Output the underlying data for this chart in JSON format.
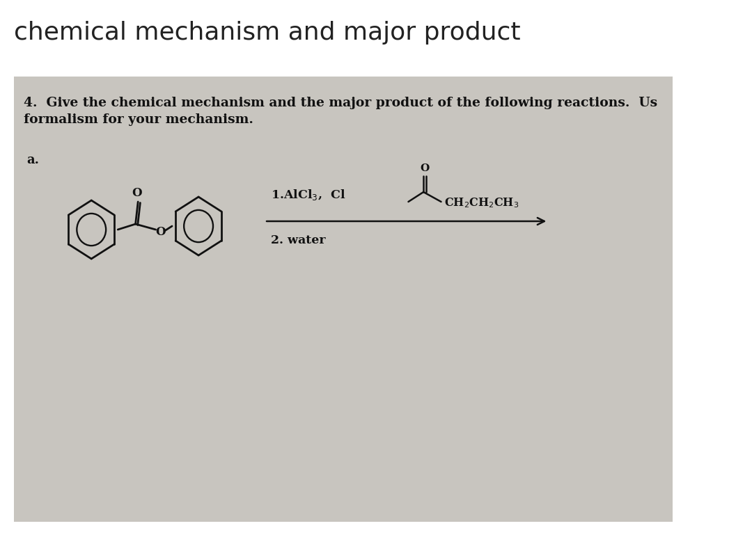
{
  "title": "chemical mechanism and major product",
  "title_fontsize": 26,
  "title_color": "#222222",
  "bg_color": "#f0eeeb",
  "white_bg": "#ffffff",
  "box_bg": "#c8c5bf",
  "question_text": "4.  Give the chemical mechanism and the major product of the following reactions.  Us",
  "question_text2": "formalism for your mechanism.",
  "question_fontsize": 13.5,
  "label_a": "a.",
  "reagent_line1": "1.AlCl₃,  Cl",
  "reagent_line2": "2. water",
  "acyl_chain": "CH₂CH₂CH₃"
}
